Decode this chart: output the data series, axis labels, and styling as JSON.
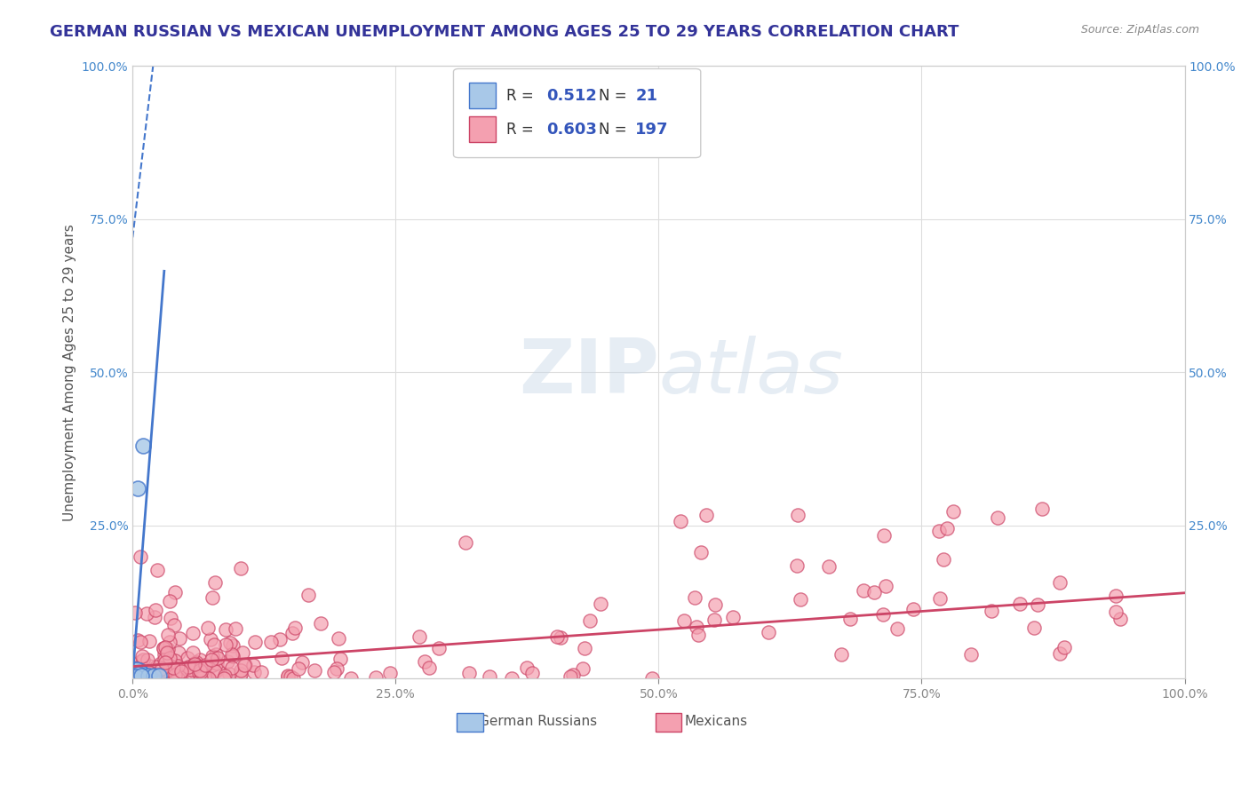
{
  "title": "GERMAN RUSSIAN VS MEXICAN UNEMPLOYMENT AMONG AGES 25 TO 29 YEARS CORRELATION CHART",
  "source": "Source: ZipAtlas.com",
  "xlabel": "",
  "ylabel": "Unemployment Among Ages 25 to 29 years",
  "xlim": [
    0,
    1
  ],
  "ylim": [
    0,
    1
  ],
  "xticks": [
    0,
    0.25,
    0.5,
    0.75,
    1.0
  ],
  "xticklabels": [
    "0.0%",
    "25.0%",
    "50.0%",
    "75.0%",
    "100.0%"
  ],
  "yticks": [
    0,
    0.25,
    0.5,
    0.75,
    1.0
  ],
  "yticklabels": [
    "",
    "25.0%",
    "50.0%",
    "75.0%",
    "100.0%"
  ],
  "gr_R": 0.512,
  "gr_N": 21,
  "mx_R": 0.603,
  "mx_N": 197,
  "gr_color": "#a8c8e8",
  "gr_line_color": "#4477cc",
  "mx_color": "#f4a0b0",
  "mx_line_color": "#cc4466",
  "background_color": "#ffffff",
  "watermark_zip": "ZIP",
  "watermark_atlas": "atlas",
  "title_color": "#333399",
  "axis_color": "#888888",
  "grid_color": "#dddddd",
  "legend_R_color": "#4466cc",
  "legend_N_color": "#333399",
  "slope_gr": 22.0,
  "intercept_gr": 0.005,
  "slope_mx": 0.12,
  "intercept_mx": 0.02,
  "title_fontsize": 13,
  "axis_label_fontsize": 11,
  "tick_fontsize": 10,
  "legend_fontsize": 13
}
